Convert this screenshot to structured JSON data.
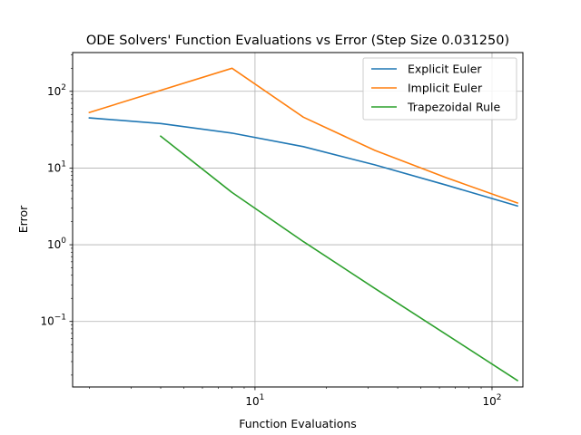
{
  "chart_data": {
    "type": "line",
    "title": "ODE Solvers' Function Evaluations vs Error (Step Size 0.031250)",
    "xlabel": "Function Evaluations",
    "ylabel": "Error",
    "xscale": "log",
    "yscale": "log",
    "xlim": [
      1.7,
      135
    ],
    "ylim": [
      0.014,
      320
    ],
    "grid": true,
    "legend_position": "top-right",
    "x_ticks": [
      {
        "value": 10,
        "base": "10",
        "exp": "1"
      },
      {
        "value": 100,
        "base": "10",
        "exp": "2"
      }
    ],
    "y_ticks": [
      {
        "value": 0.1,
        "base": "10",
        "exp": "−1"
      },
      {
        "value": 1,
        "base": "10",
        "exp": "0"
      },
      {
        "value": 10,
        "base": "10",
        "exp": "1"
      },
      {
        "value": 100,
        "base": "10",
        "exp": "2"
      }
    ],
    "series": [
      {
        "name": "Explicit Euler",
        "color": "#1f77b4",
        "x": [
          2,
          4,
          8,
          16,
          32,
          64,
          128
        ],
        "y": [
          45,
          38,
          28.5,
          19,
          11,
          6,
          3.2
        ]
      },
      {
        "name": "Implicit Euler",
        "color": "#ff7f0e",
        "x": [
          2,
          8,
          16,
          32,
          64,
          128
        ],
        "y": [
          53,
          200,
          46,
          17,
          7.5,
          3.5
        ]
      },
      {
        "name": "Trapezoidal Rule",
        "color": "#2ca02c",
        "x": [
          4,
          8,
          16,
          32,
          64,
          128
        ],
        "y": [
          26,
          4.8,
          1.1,
          0.27,
          0.068,
          0.017
        ]
      }
    ]
  }
}
